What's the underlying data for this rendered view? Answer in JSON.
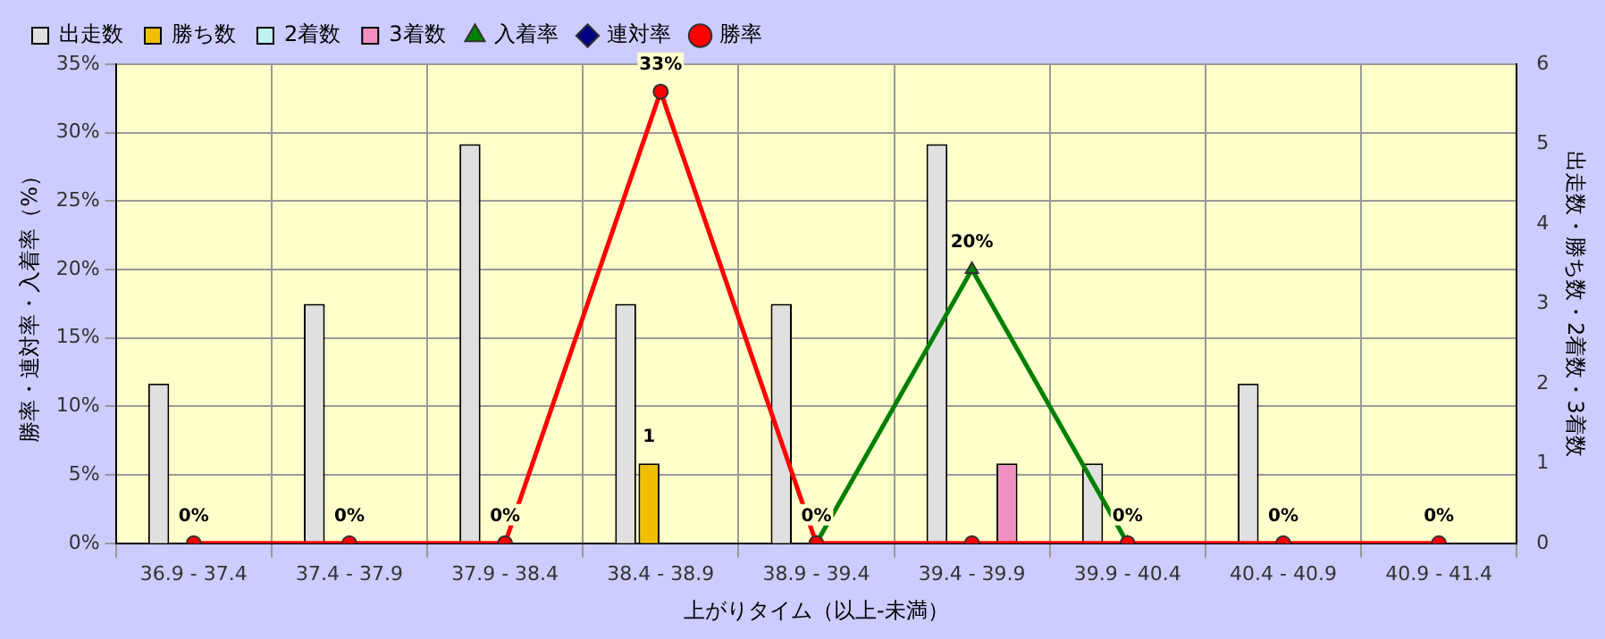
{
  "chart_data": {
    "type": "bar",
    "xlabel": "上がりタイム（以上-未満）",
    "ylabel": "勝率・連対率・入着率（%）",
    "y2label": "出走数・勝ち数・2着数・3着数",
    "categories": [
      "36.9 - 37.4",
      "37.4 - 37.9",
      "37.9 - 38.4",
      "38.4 - 38.9",
      "38.9 - 39.4",
      "39.4 - 39.9",
      "39.9 - 40.4",
      "40.4 - 40.9",
      "40.9 - 41.4"
    ],
    "series": [
      {
        "name": "出走数",
        "axis": "y2",
        "color": "#e0e0e0",
        "values": [
          2,
          3,
          5,
          3,
          3,
          5,
          1,
          2,
          0
        ]
      },
      {
        "name": "勝ち数",
        "axis": "y2",
        "color": "#f0c000",
        "values": [
          0,
          0,
          0,
          1,
          0,
          0,
          0,
          0,
          0
        ],
        "value_labels": [
          null,
          null,
          null,
          "1",
          null,
          null,
          null,
          null,
          null
        ]
      },
      {
        "name": "2着数",
        "axis": "y2",
        "color": "#c0f0f0",
        "values": [
          0,
          0,
          0,
          0,
          0,
          0,
          0,
          0,
          0
        ]
      },
      {
        "name": "3着数",
        "axis": "y2",
        "color": "#f090c0",
        "values": [
          0,
          0,
          0,
          0,
          0,
          1,
          0,
          0,
          0
        ]
      },
      {
        "name": "入着率",
        "type": "line",
        "marker": "triangle",
        "color": "#008000",
        "values": [
          null,
          null,
          null,
          null,
          0,
          20,
          0,
          null,
          null
        ],
        "value_labels": [
          null,
          null,
          null,
          null,
          null,
          "20%",
          null,
          null,
          null
        ]
      },
      {
        "name": "連対率",
        "type": "line",
        "marker": "diamond",
        "color": "#000080",
        "values": [
          null,
          null,
          null,
          null,
          null,
          null,
          null,
          null,
          null
        ]
      },
      {
        "name": "勝率",
        "type": "line",
        "marker": "circle",
        "color": "#ff0000",
        "values": [
          0,
          0,
          0,
          33,
          0,
          0,
          0,
          0,
          0
        ],
        "value_labels": [
          "0%",
          "0%",
          "0%",
          "33%",
          "0%",
          null,
          "0%",
          "0%",
          "0%"
        ]
      }
    ],
    "ylim": [
      0,
      35
    ],
    "yticks": [
      {
        "value": 0,
        "label": "0%"
      },
      {
        "value": 5,
        "label": "5%"
      },
      {
        "value": 10,
        "label": "10%"
      },
      {
        "value": 15,
        "label": "15%"
      },
      {
        "value": 20,
        "label": "20%"
      },
      {
        "value": 25,
        "label": "25%"
      },
      {
        "value": 30,
        "label": "30%"
      },
      {
        "value": 35,
        "label": "35%"
      }
    ],
    "y2lim": [
      0,
      6
    ],
    "y2ticks": [
      0,
      1,
      2,
      3,
      4,
      5,
      6
    ],
    "grid": true,
    "legend": "top left"
  }
}
